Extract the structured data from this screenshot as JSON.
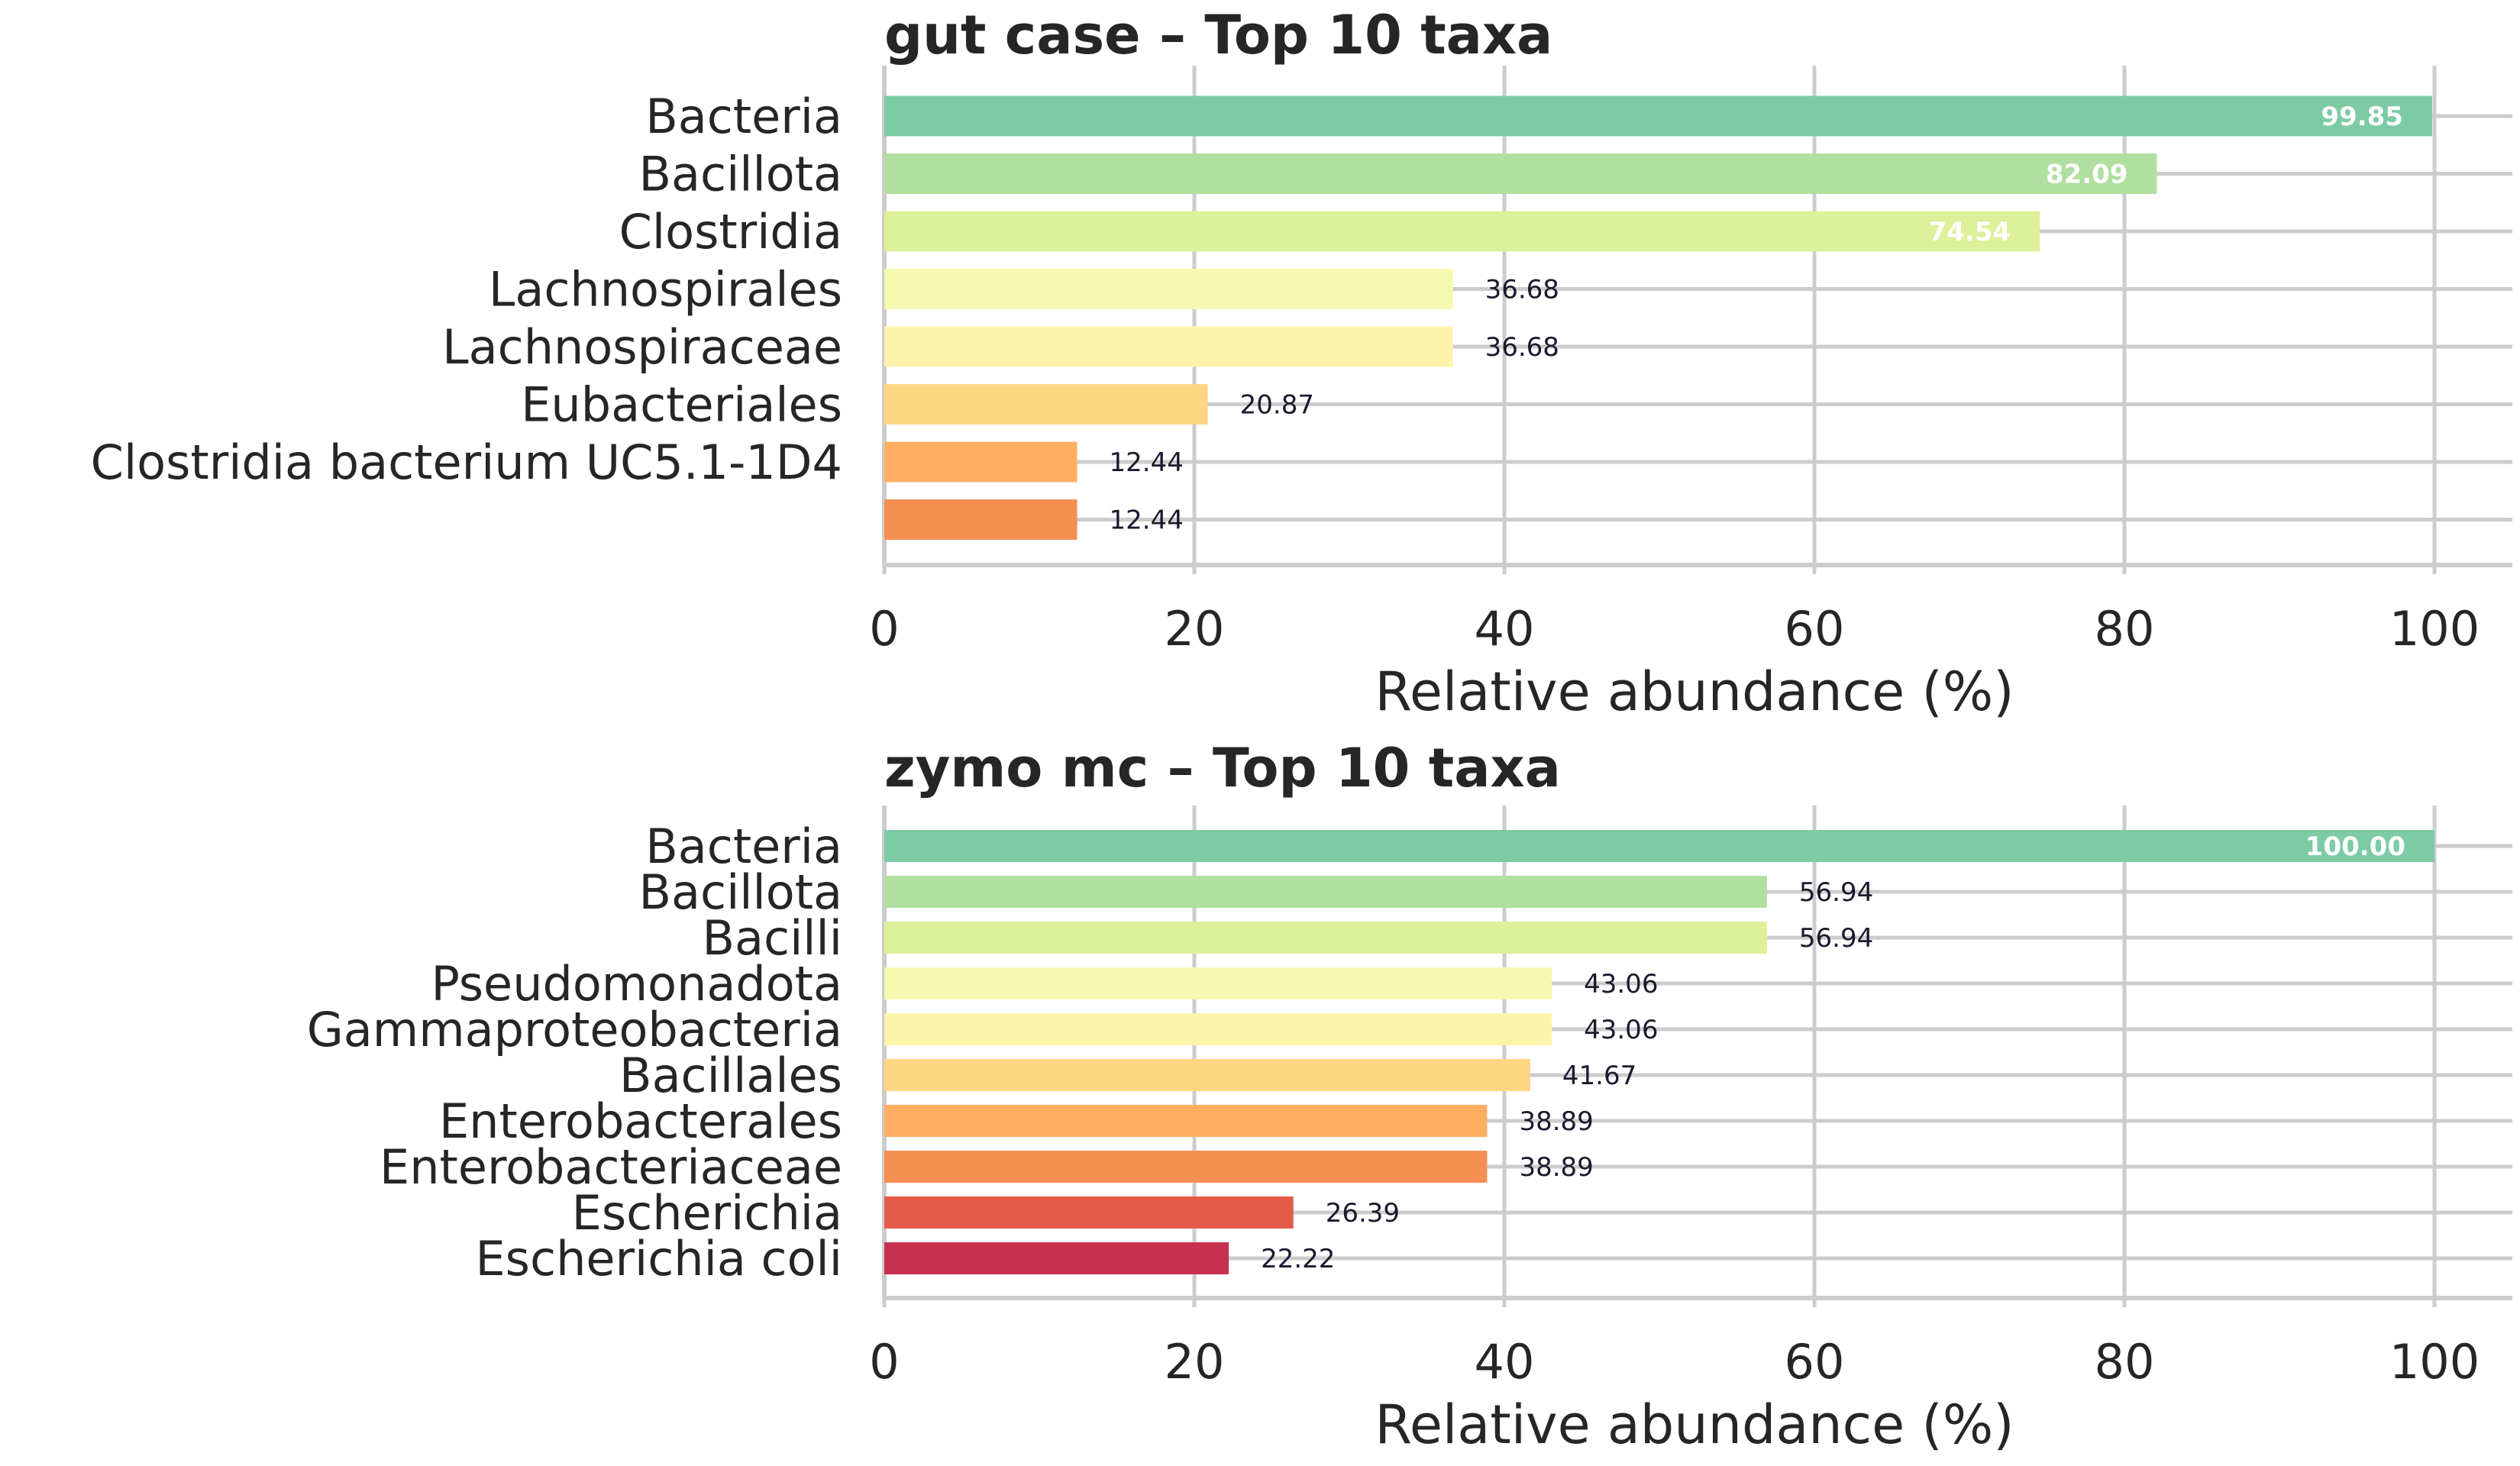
{
  "chart_data": [
    {
      "type": "bar",
      "orientation": "horizontal",
      "title": "gut case – Top 10 taxa",
      "xlabel": "Relative abundance (%)",
      "xlim": [
        0,
        105
      ],
      "xticks": [
        "0",
        "20",
        "40",
        "60",
        "80",
        "100"
      ],
      "grid": true,
      "categories": [
        "Bacteria",
        "Bacillota",
        "Clostridia",
        "Lachnospirales",
        "Lachnospiraceae",
        "Eubacteriales",
        "Clostridia bacterium UC5.1-1D4",
        ""
      ],
      "values": [
        99.85,
        82.09,
        74.54,
        36.68,
        36.68,
        20.87,
        12.44,
        12.44
      ],
      "labels": [
        "99.85",
        "82.09",
        "74.54",
        "36.68",
        "36.68",
        "20.87",
        "12.44",
        "12.44"
      ],
      "colors": [
        "#7ccba4",
        "#b0dfa0",
        "#ddf09a",
        "#f6f9b0",
        "#fef3aa",
        "#fed583",
        "#fdae61",
        "#f68e52"
      ]
    },
    {
      "type": "bar",
      "orientation": "horizontal",
      "title": "zymo mc – Top 10 taxa",
      "xlabel": "Relative abundance (%)",
      "xlim": [
        0,
        105
      ],
      "xticks": [
        "0",
        "20",
        "40",
        "60",
        "80",
        "100"
      ],
      "grid": true,
      "categories": [
        "Bacteria",
        "Bacillota",
        "Bacilli",
        "Pseudomonadota",
        "Gammaproteobacteria",
        "Bacillales",
        "Enterobacterales",
        "Enterobacteriaceae",
        "Escherichia",
        "Escherichia coli"
      ],
      "values": [
        100.0,
        56.94,
        56.94,
        43.06,
        43.06,
        41.67,
        38.89,
        38.89,
        26.39,
        22.22
      ],
      "labels": [
        "100.00",
        "56.94",
        "56.94",
        "43.06",
        "43.06",
        "41.67",
        "38.89",
        "38.89",
        "26.39",
        "22.22"
      ],
      "colors": [
        "#7ccba4",
        "#b0dfa0",
        "#ddf09a",
        "#f6f9b0",
        "#fef3aa",
        "#fed583",
        "#fdae61",
        "#f68e52",
        "#e45a49",
        "#c8314e"
      ]
    }
  ]
}
